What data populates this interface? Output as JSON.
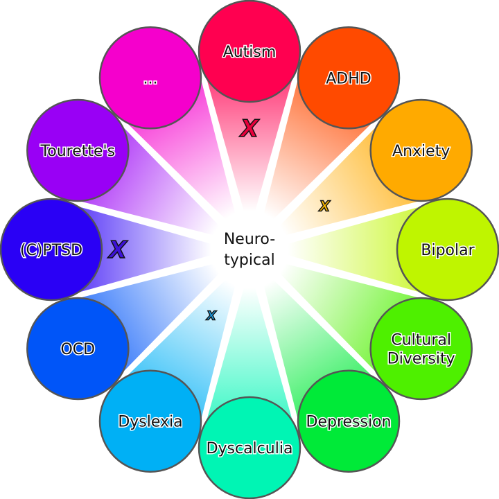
{
  "center": {
    "lines": [
      "Neuro-",
      "typical"
    ]
  },
  "spectrum": [
    {
      "label": [
        "Autism"
      ],
      "color": "#ff0050"
    },
    {
      "label": [
        "ADHD"
      ],
      "color": "#ff4a00"
    },
    {
      "label": [
        "Anxiety"
      ],
      "color": "#ffaa00"
    },
    {
      "label": [
        "Bipolar"
      ],
      "color": "#bff500"
    },
    {
      "label": [
        "Cultural",
        "Diversity"
      ],
      "color": "#4ef000"
    },
    {
      "label": [
        "Depression"
      ],
      "color": "#00ea38"
    },
    {
      "label": [
        "Dyscalculia"
      ],
      "color": "#00f5b4"
    },
    {
      "label": [
        "Dyslexia"
      ],
      "color": "#00b0f5"
    },
    {
      "label": [
        "OCD"
      ],
      "color": "#0055f8"
    },
    {
      "label": [
        "(C)PTSD"
      ],
      "color": "#2a00f5"
    },
    {
      "label": [
        "Tourette's"
      ],
      "color": "#9900f5"
    },
    {
      "label": [
        "..."
      ],
      "color": "#f500cc"
    }
  ],
  "markers": [
    {
      "symbol": "X",
      "condition": "Autism",
      "color": "#e8003c"
    },
    {
      "symbol": "X",
      "condition": "Anxiety",
      "color": "#ffbb00"
    },
    {
      "symbol": "X",
      "condition": "(C)PTSD",
      "color": "#3d12d8"
    },
    {
      "symbol": "X",
      "condition": "Dyslexia",
      "color": "#1aa0e8"
    }
  ]
}
